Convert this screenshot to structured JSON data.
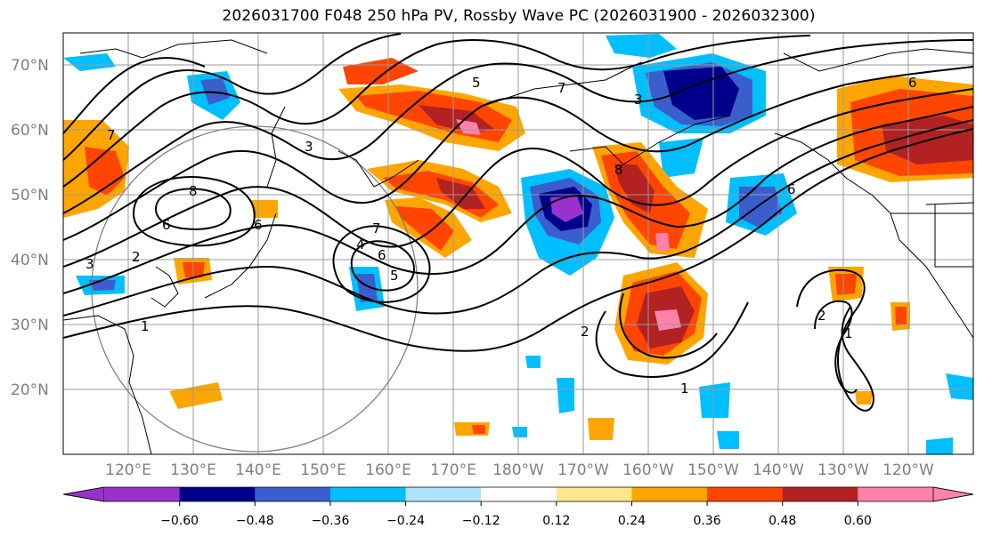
{
  "title": "2026031700 F048 250 hPa PV, Rossby Wave PC (2026031900 - 2026032300)",
  "latitude_labels": [
    "70°N",
    "60°N",
    "50°N",
    "40°N",
    "30°N",
    "20°N"
  ],
  "longitude_labels": [
    "120°E",
    "130°E",
    "140°E",
    "150°E",
    "160°E",
    "170°E",
    "180°W",
    "170°W",
    "160°W",
    "150°W",
    "140°W",
    "130°W",
    "120°W"
  ],
  "colorbar": {
    "tick_labels": [
      "−0.60",
      "−0.48",
      "−0.36",
      "−0.24",
      "−0.12",
      "0.12",
      "0.24",
      "0.36",
      "0.48",
      "0.60"
    ],
    "colors": [
      "#9932cc",
      "#00008b",
      "#3a5fcd",
      "#00bfff",
      "#b0e2ff",
      "#ffffff",
      "#ffe78a",
      "#ffa500",
      "#ff4500",
      "#b22222",
      "#ff82ab"
    ]
  },
  "contour_labels": [
    "7",
    "8",
    "6",
    "6",
    "3",
    "3",
    "1",
    "2",
    "4",
    "5",
    "6",
    "7",
    "5",
    "2",
    "1",
    "3",
    "6",
    "7",
    "8",
    "6",
    "2",
    "1"
  ]
}
